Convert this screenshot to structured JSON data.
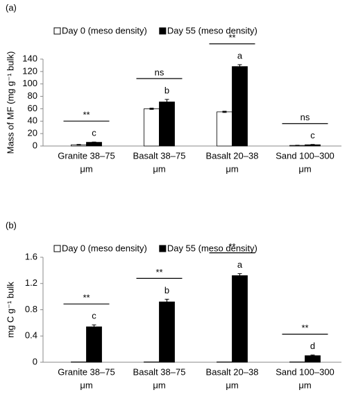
{
  "chart_data": [
    {
      "type": "bar",
      "panel": "(a)",
      "ylabel": "Mass of MF (mg g⁻¹ bulk)",
      "categories": [
        [
          "Granite 38–75",
          "μm"
        ],
        [
          "Basalt 38–75",
          "μm"
        ],
        [
          "Basalt 20–38",
          "μm"
        ],
        [
          "Sand 100–300",
          "μm"
        ]
      ],
      "series": [
        {
          "name": "Day 0 (meso density)",
          "color": "#ffffff",
          "values": [
            2,
            60,
            55,
            1
          ],
          "errors": [
            0.5,
            1,
            1,
            0.3
          ]
        },
        {
          "name": "Day 55 (meso density)",
          "color": "#000000",
          "values": [
            6,
            71,
            128,
            2
          ],
          "errors": [
            0.5,
            4,
            3,
            0.5
          ]
        }
      ],
      "significance": [
        "**",
        "ns",
        "**",
        "ns"
      ],
      "letters": [
        "c",
        "b",
        "a",
        "c"
      ],
      "ylim": [
        0,
        140
      ],
      "yticks": [
        0,
        20,
        40,
        60,
        80,
        100,
        120,
        140
      ]
    },
    {
      "type": "bar",
      "panel": "(b)",
      "ylabel": "mg C g⁻¹ bulk",
      "categories": [
        [
          "Granite 38–75",
          "μm"
        ],
        [
          "Basalt 38–75",
          "μm"
        ],
        [
          "Basalt 20–38",
          "μm"
        ],
        [
          "Sand 100–300",
          "μm"
        ]
      ],
      "series": [
        {
          "name": "Day 0 (meso density)",
          "color": "#ffffff",
          "values": [
            0.005,
            0.005,
            0.005,
            0.005
          ],
          "errors": [
            0,
            0,
            0,
            0
          ]
        },
        {
          "name": "Day 55 (meso density)",
          "color": "#000000",
          "values": [
            0.54,
            0.92,
            1.32,
            0.1
          ],
          "errors": [
            0.03,
            0.04,
            0.03,
            0.01
          ]
        }
      ],
      "significance": [
        "**",
        "**",
        "**",
        "**"
      ],
      "letters": [
        "c",
        "b",
        "a",
        "d"
      ],
      "ylim": [
        0,
        1.6
      ],
      "yticks": [
        0,
        0.4,
        0.8,
        1.2,
        1.6
      ]
    }
  ]
}
